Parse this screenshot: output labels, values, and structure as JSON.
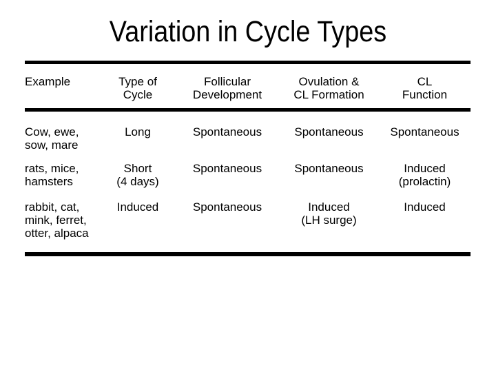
{
  "slide": {
    "title": "Variation in Cycle Types"
  },
  "colors": {
    "background": "#ffffff",
    "text": "#000000",
    "rule": "#000000"
  },
  "table": {
    "columns": [
      "Example",
      "Type of\nCycle",
      "Follicular\nDevelopment",
      "Ovulation &\nCL Formation",
      "CL\nFunction"
    ],
    "rows": [
      [
        "Cow, ewe,\nsow, mare",
        "Long",
        "Spontaneous",
        "Spontaneous",
        "Spontaneous"
      ],
      [
        "rats, mice,\nhamsters",
        "Short\n(4 days)",
        "Spontaneous",
        "Spontaneous",
        "Induced\n(prolactin)"
      ],
      [
        "rabbit, cat,\nmink, ferret,\notter, alpaca",
        "Induced",
        "Spontaneous",
        "Induced\n(LH surge)",
        "Induced"
      ]
    ]
  }
}
